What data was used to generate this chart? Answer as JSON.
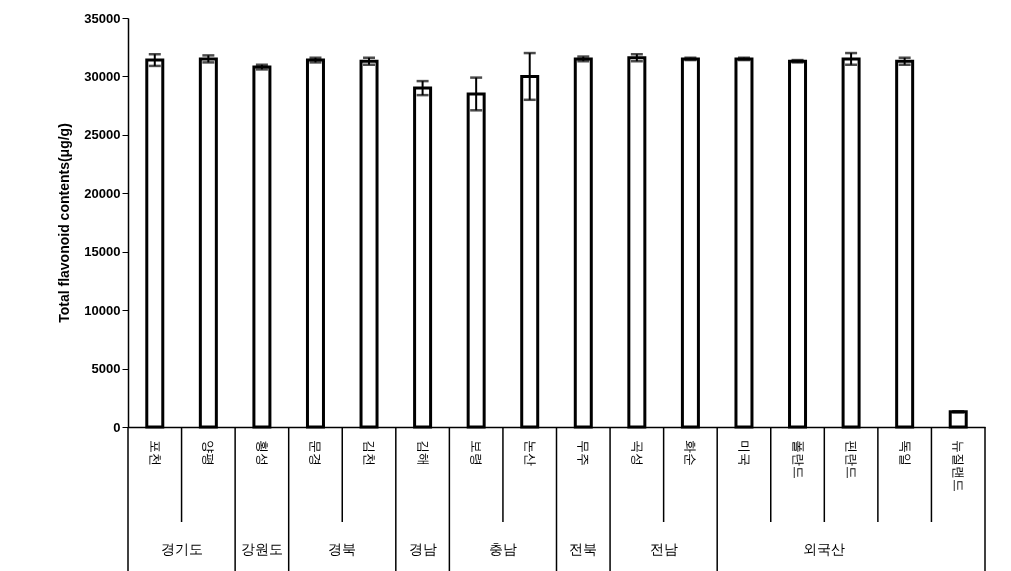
{
  "chart_data": {
    "type": "bar",
    "ylabel": "Total flavonoid contents(μg/g)",
    "categories": [
      "포천",
      "양평",
      "횡성",
      "문경",
      "김천",
      "김해",
      "보령",
      "논산",
      "무주",
      "곡성",
      "화순",
      "미국",
      "폴란드",
      "핀란드",
      "독일",
      "뉴질랜드"
    ],
    "values": [
      31400,
      31500,
      30800,
      31400,
      31300,
      29000,
      28500,
      30000,
      31500,
      31600,
      31500,
      31500,
      31300,
      31500,
      31300,
      1300
    ],
    "errors": [
      500,
      300,
      200,
      200,
      300,
      600,
      1400,
      2000,
      200,
      300,
      100,
      100,
      100,
      500,
      300,
      50
    ],
    "color": "#ffffff",
    "ylim": [
      0,
      35000
    ],
    "yticks": [
      0,
      5000,
      10000,
      15000,
      20000,
      25000,
      30000,
      35000
    ],
    "annotations": [
      "경기도",
      "강원도",
      "경북",
      "경남",
      "충남",
      "전북",
      "전남",
      "외국산"
    ]
  }
}
